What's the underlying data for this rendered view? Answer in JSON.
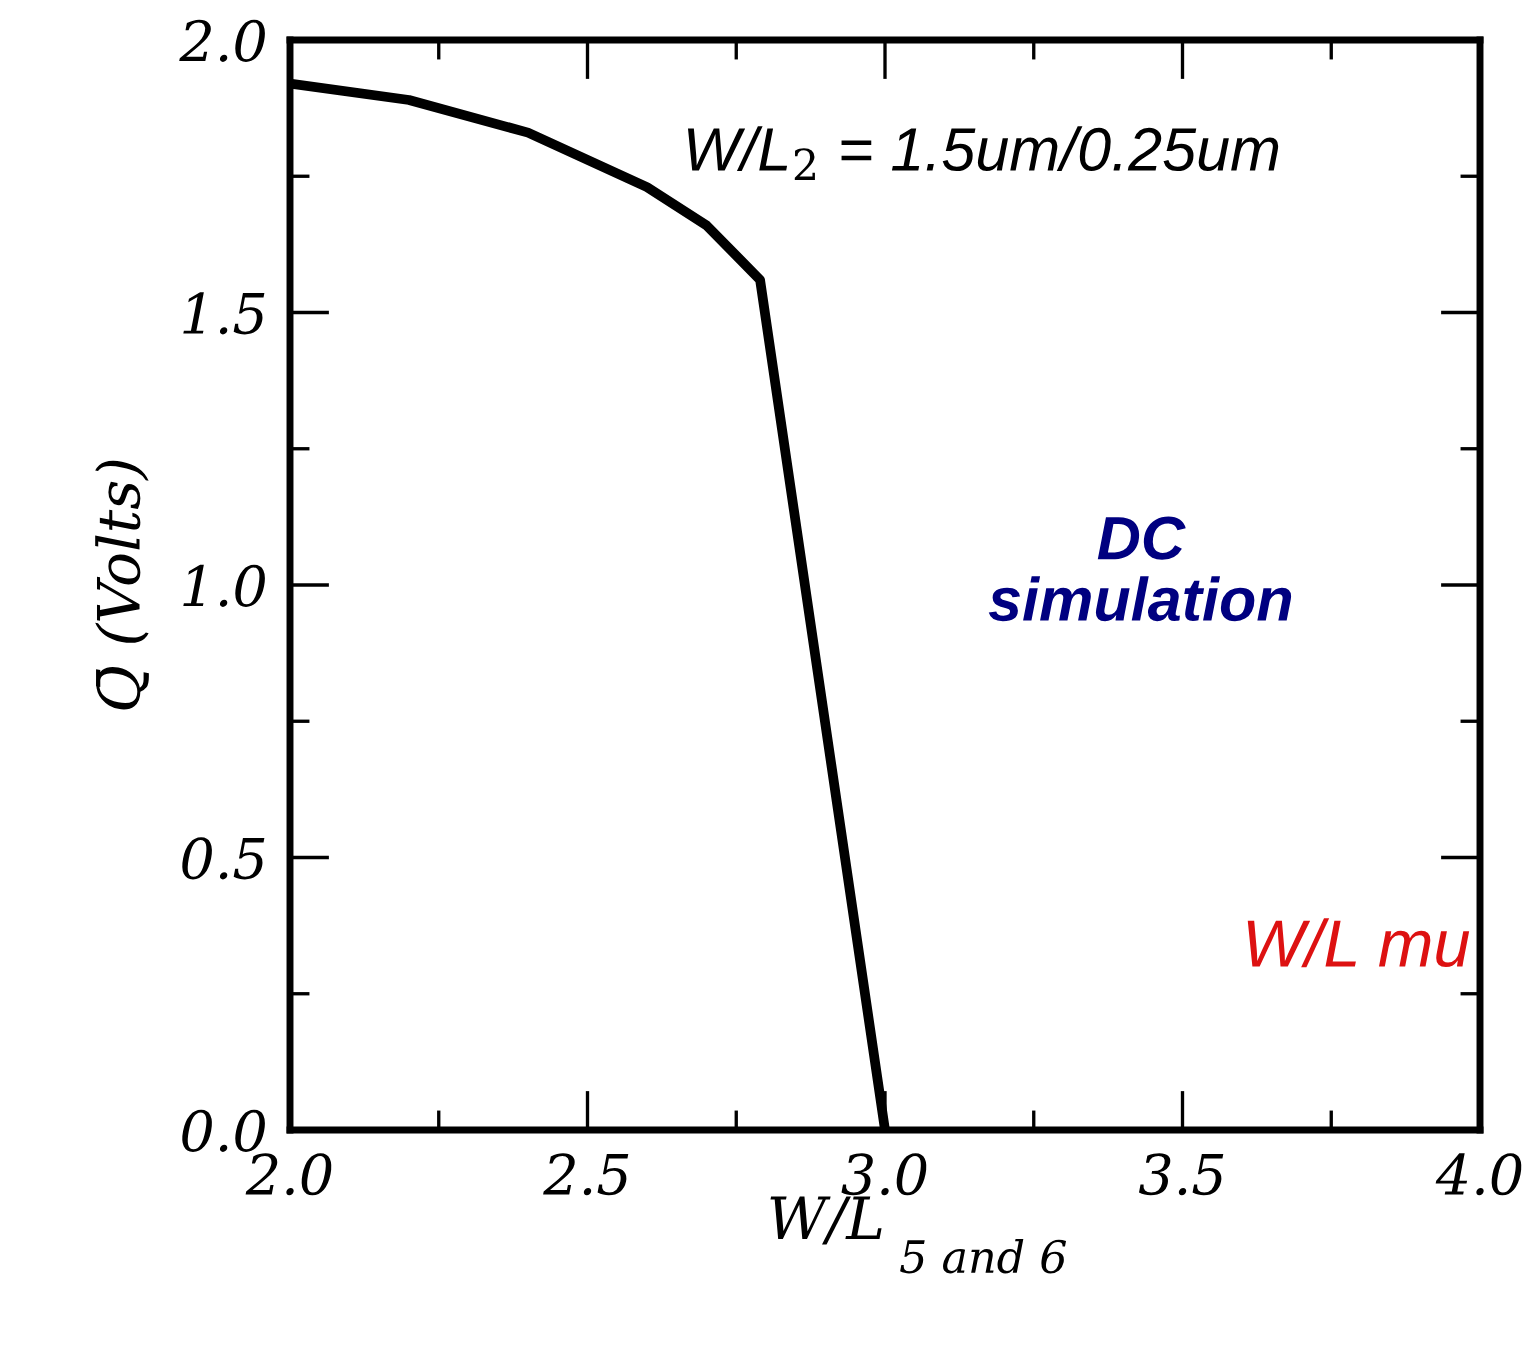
{
  "chart_data": {
    "type": "line",
    "xlabel": "W/L$_{5 and 6}$",
    "ylabel": "Q̄ (Volts)",
    "x": [
      2.0,
      2.2,
      2.4,
      2.6,
      2.7,
      2.79,
      3.0
    ],
    "series": [
      {
        "color": "#000000",
        "values": [
          1.92,
          1.89,
          1.83,
          1.73,
          1.66,
          1.56,
          0.0
        ]
      }
    ],
    "xlim": [
      2.0,
      4.0
    ],
    "ylim": [
      0.0,
      2.0
    ],
    "xticks": [
      {
        "value": 2.0,
        "label": "2.0"
      },
      {
        "value": 2.5,
        "label": "2.5"
      },
      {
        "value": 3.0,
        "label": "3.0"
      },
      {
        "value": 3.5,
        "label": "3.5"
      },
      {
        "value": 4.0,
        "label": "4.0"
      }
    ],
    "yticks": [
      {
        "value": 0.0,
        "label": "0.0"
      },
      {
        "value": 0.5,
        "label": "0.5"
      },
      {
        "value": 1.0,
        "label": "1.0"
      },
      {
        "value": 1.5,
        "label": "1.5"
      },
      {
        "value": 2.0,
        "label": "2.0"
      }
    ],
    "annotations": [
      "W/L$_{2}$ = 1.5um/0.25um",
      "DC\nsimulation",
      "W/L mu"
    ],
    "grid": false,
    "legend": false,
    "marker": "none",
    "line_style": "solid"
  }
}
